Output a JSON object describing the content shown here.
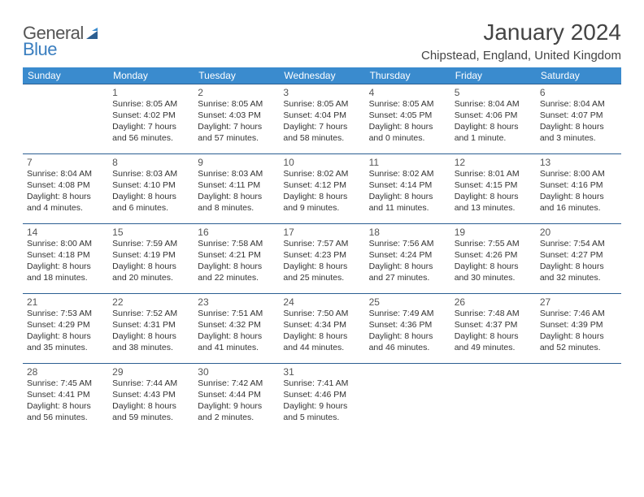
{
  "logo": {
    "word1": "General",
    "word2": "Blue",
    "mark_color": "#2c5f92"
  },
  "header": {
    "title": "January 2024",
    "location": "Chipstead, England, United Kingdom"
  },
  "colors": {
    "header_bg": "#3a8bce",
    "header_text": "#ffffff",
    "row_border": "#2c5f92",
    "text": "#333333"
  },
  "day_names": [
    "Sunday",
    "Monday",
    "Tuesday",
    "Wednesday",
    "Thursday",
    "Friday",
    "Saturday"
  ],
  "weeks": [
    [
      {
        "blank": true
      },
      {
        "day": "1",
        "sunrise": "8:05 AM",
        "sunset": "4:02 PM",
        "daylight1": "Daylight: 7 hours",
        "daylight2": "and 56 minutes."
      },
      {
        "day": "2",
        "sunrise": "8:05 AM",
        "sunset": "4:03 PM",
        "daylight1": "Daylight: 7 hours",
        "daylight2": "and 57 minutes."
      },
      {
        "day": "3",
        "sunrise": "8:05 AM",
        "sunset": "4:04 PM",
        "daylight1": "Daylight: 7 hours",
        "daylight2": "and 58 minutes."
      },
      {
        "day": "4",
        "sunrise": "8:05 AM",
        "sunset": "4:05 PM",
        "daylight1": "Daylight: 8 hours",
        "daylight2": "and 0 minutes."
      },
      {
        "day": "5",
        "sunrise": "8:04 AM",
        "sunset": "4:06 PM",
        "daylight1": "Daylight: 8 hours",
        "daylight2": "and 1 minute."
      },
      {
        "day": "6",
        "sunrise": "8:04 AM",
        "sunset": "4:07 PM",
        "daylight1": "Daylight: 8 hours",
        "daylight2": "and 3 minutes."
      }
    ],
    [
      {
        "day": "7",
        "sunrise": "8:04 AM",
        "sunset": "4:08 PM",
        "daylight1": "Daylight: 8 hours",
        "daylight2": "and 4 minutes."
      },
      {
        "day": "8",
        "sunrise": "8:03 AM",
        "sunset": "4:10 PM",
        "daylight1": "Daylight: 8 hours",
        "daylight2": "and 6 minutes."
      },
      {
        "day": "9",
        "sunrise": "8:03 AM",
        "sunset": "4:11 PM",
        "daylight1": "Daylight: 8 hours",
        "daylight2": "and 8 minutes."
      },
      {
        "day": "10",
        "sunrise": "8:02 AM",
        "sunset": "4:12 PM",
        "daylight1": "Daylight: 8 hours",
        "daylight2": "and 9 minutes."
      },
      {
        "day": "11",
        "sunrise": "8:02 AM",
        "sunset": "4:14 PM",
        "daylight1": "Daylight: 8 hours",
        "daylight2": "and 11 minutes."
      },
      {
        "day": "12",
        "sunrise": "8:01 AM",
        "sunset": "4:15 PM",
        "daylight1": "Daylight: 8 hours",
        "daylight2": "and 13 minutes."
      },
      {
        "day": "13",
        "sunrise": "8:00 AM",
        "sunset": "4:16 PM",
        "daylight1": "Daylight: 8 hours",
        "daylight2": "and 16 minutes."
      }
    ],
    [
      {
        "day": "14",
        "sunrise": "8:00 AM",
        "sunset": "4:18 PM",
        "daylight1": "Daylight: 8 hours",
        "daylight2": "and 18 minutes."
      },
      {
        "day": "15",
        "sunrise": "7:59 AM",
        "sunset": "4:19 PM",
        "daylight1": "Daylight: 8 hours",
        "daylight2": "and 20 minutes."
      },
      {
        "day": "16",
        "sunrise": "7:58 AM",
        "sunset": "4:21 PM",
        "daylight1": "Daylight: 8 hours",
        "daylight2": "and 22 minutes."
      },
      {
        "day": "17",
        "sunrise": "7:57 AM",
        "sunset": "4:23 PM",
        "daylight1": "Daylight: 8 hours",
        "daylight2": "and 25 minutes."
      },
      {
        "day": "18",
        "sunrise": "7:56 AM",
        "sunset": "4:24 PM",
        "daylight1": "Daylight: 8 hours",
        "daylight2": "and 27 minutes."
      },
      {
        "day": "19",
        "sunrise": "7:55 AM",
        "sunset": "4:26 PM",
        "daylight1": "Daylight: 8 hours",
        "daylight2": "and 30 minutes."
      },
      {
        "day": "20",
        "sunrise": "7:54 AM",
        "sunset": "4:27 PM",
        "daylight1": "Daylight: 8 hours",
        "daylight2": "and 32 minutes."
      }
    ],
    [
      {
        "day": "21",
        "sunrise": "7:53 AM",
        "sunset": "4:29 PM",
        "daylight1": "Daylight: 8 hours",
        "daylight2": "and 35 minutes."
      },
      {
        "day": "22",
        "sunrise": "7:52 AM",
        "sunset": "4:31 PM",
        "daylight1": "Daylight: 8 hours",
        "daylight2": "and 38 minutes."
      },
      {
        "day": "23",
        "sunrise": "7:51 AM",
        "sunset": "4:32 PM",
        "daylight1": "Daylight: 8 hours",
        "daylight2": "and 41 minutes."
      },
      {
        "day": "24",
        "sunrise": "7:50 AM",
        "sunset": "4:34 PM",
        "daylight1": "Daylight: 8 hours",
        "daylight2": "and 44 minutes."
      },
      {
        "day": "25",
        "sunrise": "7:49 AM",
        "sunset": "4:36 PM",
        "daylight1": "Daylight: 8 hours",
        "daylight2": "and 46 minutes."
      },
      {
        "day": "26",
        "sunrise": "7:48 AM",
        "sunset": "4:37 PM",
        "daylight1": "Daylight: 8 hours",
        "daylight2": "and 49 minutes."
      },
      {
        "day": "27",
        "sunrise": "7:46 AM",
        "sunset": "4:39 PM",
        "daylight1": "Daylight: 8 hours",
        "daylight2": "and 52 minutes."
      }
    ],
    [
      {
        "day": "28",
        "sunrise": "7:45 AM",
        "sunset": "4:41 PM",
        "daylight1": "Daylight: 8 hours",
        "daylight2": "and 56 minutes."
      },
      {
        "day": "29",
        "sunrise": "7:44 AM",
        "sunset": "4:43 PM",
        "daylight1": "Daylight: 8 hours",
        "daylight2": "and 59 minutes."
      },
      {
        "day": "30",
        "sunrise": "7:42 AM",
        "sunset": "4:44 PM",
        "daylight1": "Daylight: 9 hours",
        "daylight2": "and 2 minutes."
      },
      {
        "day": "31",
        "sunrise": "7:41 AM",
        "sunset": "4:46 PM",
        "daylight1": "Daylight: 9 hours",
        "daylight2": "and 5 minutes."
      },
      {
        "blank": true
      },
      {
        "blank": true
      },
      {
        "blank": true
      }
    ]
  ]
}
